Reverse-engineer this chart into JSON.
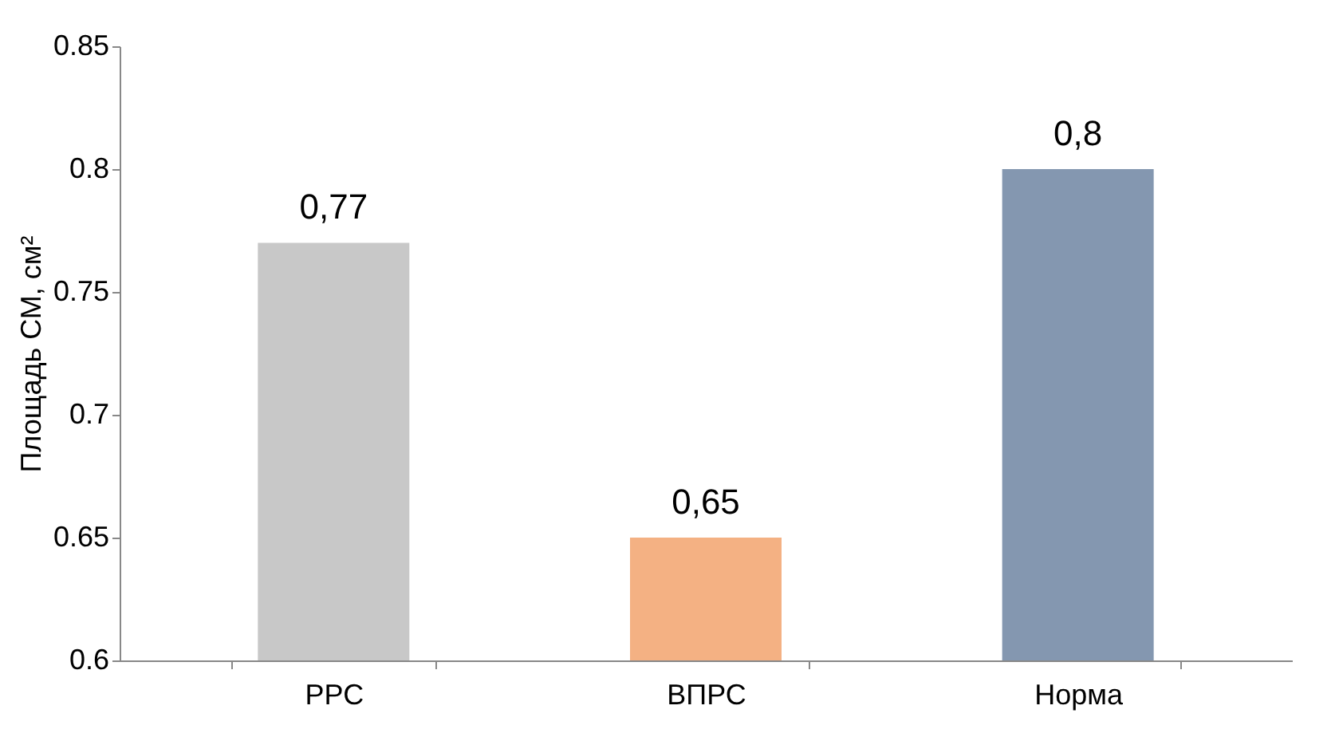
{
  "chart_data": {
    "type": "bar",
    "ylabel": "Площадь СМ, см²",
    "categories": [
      "РРС",
      "ВПРС",
      "Норма"
    ],
    "values": [
      0.77,
      0.65,
      0.8
    ],
    "colors": [
      "#c8c8c8",
      "#f4b183",
      "#8497b0"
    ],
    "value_labels": [
      "0,77",
      "0,65",
      "0,8"
    ],
    "ylim": [
      0.6,
      0.85
    ],
    "yticks": [
      0.6,
      0.65,
      0.7,
      0.75,
      0.8,
      0.85
    ]
  }
}
